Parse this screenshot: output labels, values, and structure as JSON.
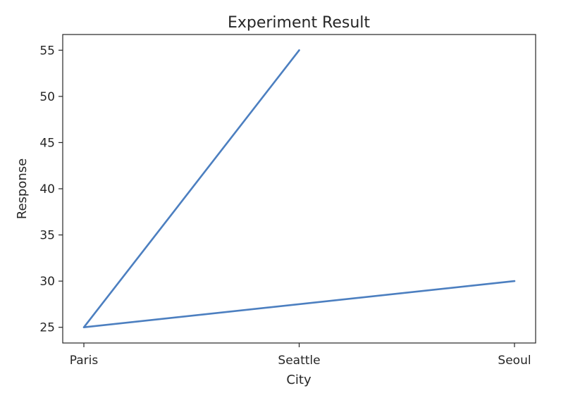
{
  "chart_data": {
    "type": "line",
    "title": "Experiment Result",
    "xlabel": "City",
    "ylabel": "Response",
    "categories": [
      "Paris",
      "Seattle",
      "Seoul"
    ],
    "series": [
      {
        "values": [
          {
            "x": "Seattle",
            "y": 55
          },
          {
            "x": "Paris",
            "y": 25
          },
          {
            "x": "Seoul",
            "y": 30
          }
        ]
      }
    ],
    "ylim": [
      23.3,
      56.7
    ],
    "yticks": [
      25,
      30,
      35,
      40,
      45,
      50,
      55
    ],
    "grid": false,
    "colors": {
      "line": "#4c7fc0",
      "axes": "#262626"
    }
  }
}
